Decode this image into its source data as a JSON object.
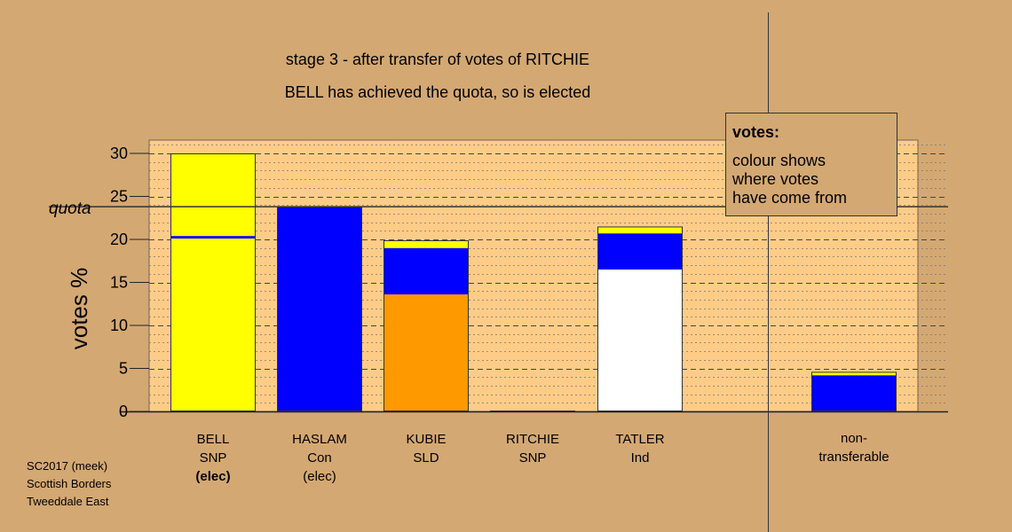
{
  "colors": {
    "background": "#d4a872",
    "plot_area": "#ffcc88",
    "SNP": "#ffff00",
    "Con": "#0000ff",
    "SLD": "#ff9900",
    "Ind": "#ffffff"
  },
  "chart_data": {
    "type": "bar",
    "stacked": true,
    "title": "stage 3 - after transfer of votes of RITCHIE",
    "subtitle": "BELL has achieved the quota, so is elected",
    "ylabel": "votes %",
    "ylim": [
      0,
      31
    ],
    "yticks": [
      0,
      5,
      10,
      15,
      20,
      25,
      30
    ],
    "quota": 23.8,
    "quota_label": "quota",
    "grid": true,
    "categories": [
      {
        "name": "BELL",
        "party": "SNP",
        "status": "(elec)",
        "status_bold": true
      },
      {
        "name": "HASLAM",
        "party": "Con",
        "status": "(elec)",
        "status_bold": false
      },
      {
        "name": "KUBIE",
        "party": "SLD",
        "status": "",
        "status_bold": false
      },
      {
        "name": "RITCHIE",
        "party": "SNP",
        "status": "",
        "status_bold": false
      },
      {
        "name": "TATLER",
        "party": "Ind",
        "status": "",
        "status_bold": false
      }
    ],
    "nontransferable_label": [
      "non-",
      "transferable"
    ],
    "bars": [
      {
        "candidate": "BELL",
        "segments": [
          {
            "from": "SNP",
            "value": 20.1
          },
          {
            "from": "Con",
            "value": 0.3
          },
          {
            "from": "SNP",
            "value": 9.6
          }
        ]
      },
      {
        "candidate": "HASLAM",
        "segments": [
          {
            "from": "Con",
            "value": 23.8
          }
        ]
      },
      {
        "candidate": "KUBIE",
        "segments": [
          {
            "from": "SLD",
            "value": 13.6
          },
          {
            "from": "Con",
            "value": 5.4
          },
          {
            "from": "SNP",
            "value": 0.9
          }
        ]
      },
      {
        "candidate": "RITCHIE",
        "segments": []
      },
      {
        "candidate": "TATLER",
        "segments": [
          {
            "from": "Ind",
            "value": 16.5
          },
          {
            "from": "Con",
            "value": 4.2
          },
          {
            "from": "SNP",
            "value": 0.8
          }
        ]
      },
      {
        "candidate": "non-transferable",
        "segments": [
          {
            "from": "Con",
            "value": 4.2
          },
          {
            "from": "SNP",
            "value": 0.4
          }
        ]
      }
    ],
    "legend": {
      "placement": "top-right",
      "title": "votes:",
      "lines": [
        "colour shows",
        "where votes",
        "have come from"
      ]
    },
    "footer": [
      "SC2017 (meek)",
      "Scottish Borders",
      "Tweeddale East"
    ]
  }
}
